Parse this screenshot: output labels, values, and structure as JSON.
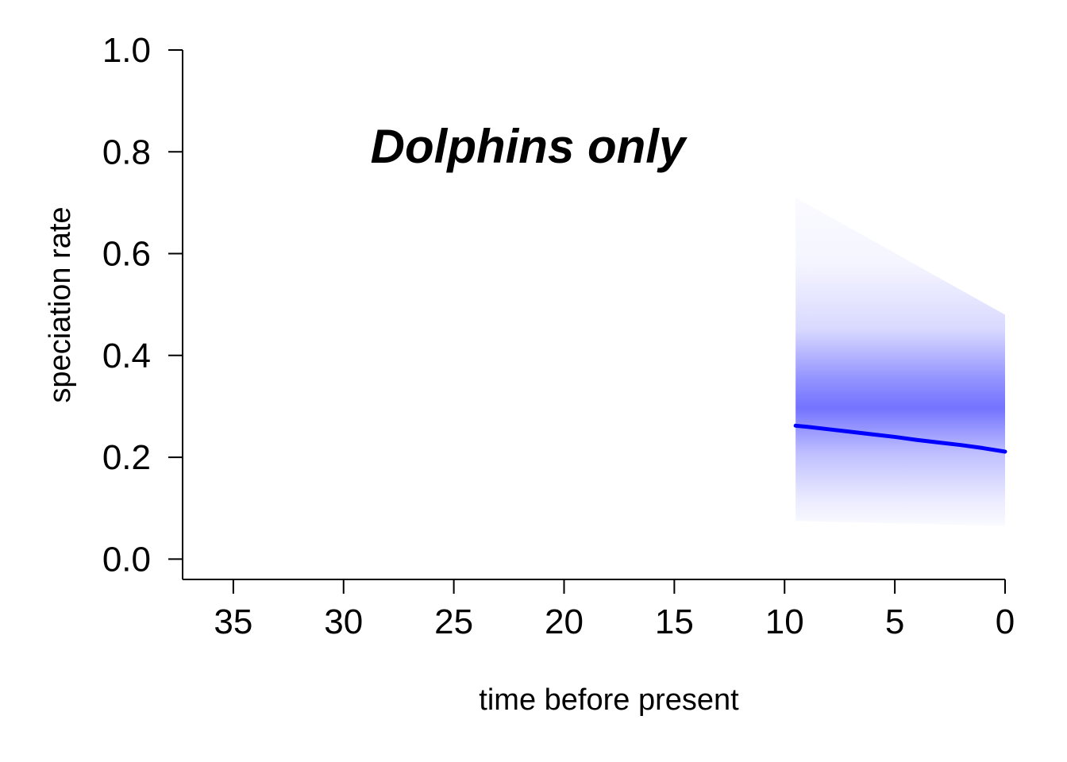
{
  "chart_data": {
    "type": "line",
    "annotation": "Dolphins only",
    "xlabel": "time before present",
    "ylabel": "speciation rate",
    "xlim": [
      37.3,
      0
    ],
    "ylim": [
      -0.04,
      1.0
    ],
    "x_ticks": [
      35,
      30,
      25,
      20,
      15,
      10,
      5,
      0
    ],
    "y_ticks": [
      "0.0",
      "0.2",
      "0.4",
      "0.6",
      "0.8",
      "1.0"
    ],
    "grid": false,
    "legend": "none",
    "colors": {
      "line": "#0000ff",
      "band": "#0000ff"
    },
    "series": [
      {
        "x": [
          9.5,
          9,
          8,
          7,
          6,
          5,
          4,
          3,
          2,
          1,
          0
        ],
        "y": [
          0.262,
          0.26,
          0.255,
          0.25,
          0.245,
          0.24,
          0.234,
          0.229,
          0.224,
          0.218,
          0.211
        ],
        "band_x": [
          9.5,
          0
        ],
        "band_lower": [
          0.075,
          0.065
        ],
        "band_upper": [
          0.71,
          0.48
        ]
      }
    ]
  }
}
